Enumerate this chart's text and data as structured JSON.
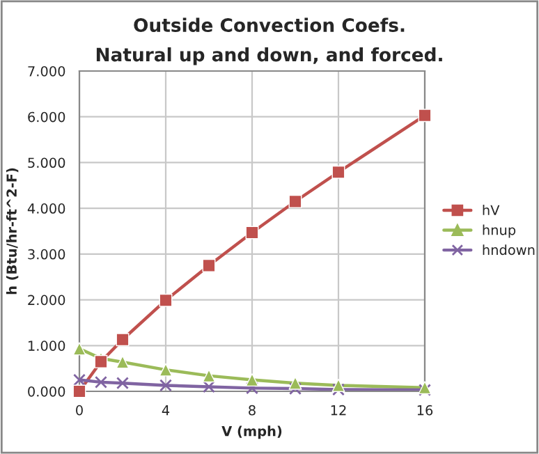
{
  "chart_data": {
    "type": "line",
    "title": "Outside Convection Coefs.",
    "subtitle": "Natural up and down, and forced.",
    "xlabel": "V (mph)",
    "ylabel": "h (Btu/hr-ft^2-F)",
    "x": [
      0,
      1,
      2,
      4,
      6,
      8,
      10,
      12,
      16
    ],
    "series": [
      {
        "name": "hV",
        "color": "#c0504d",
        "marker": "square",
        "values": [
          0,
          0.65,
          1.13,
          1.99,
          2.75,
          3.47,
          4.15,
          4.79,
          6.03
        ]
      },
      {
        "name": "hnup",
        "color": "#9bbb59",
        "marker": "triangle",
        "values": [
          0.93,
          0.72,
          0.64,
          0.47,
          0.34,
          0.25,
          0.18,
          0.13,
          0.08
        ]
      },
      {
        "name": "hndown",
        "color": "#8064a2",
        "marker": "cross",
        "values": [
          0.25,
          0.2,
          0.18,
          0.13,
          0.1,
          0.07,
          0.06,
          0.04,
          0.03
        ]
      }
    ],
    "xlim": [
      0,
      16
    ],
    "xticks": [
      0,
      4,
      8,
      12,
      16
    ],
    "ylim": [
      0,
      7
    ],
    "yticks": [
      {
        "value": 0,
        "label": "0.000"
      },
      {
        "value": 1,
        "label": "1.000"
      },
      {
        "value": 2,
        "label": "2.000"
      },
      {
        "value": 3,
        "label": "3.000"
      },
      {
        "value": 4,
        "label": "4.000"
      },
      {
        "value": 5,
        "label": "5.000"
      },
      {
        "value": 6,
        "label": "6.000"
      },
      {
        "value": 7,
        "label": "7.000"
      }
    ],
    "grid": true,
    "legend": "right",
    "line_style": "solid"
  }
}
